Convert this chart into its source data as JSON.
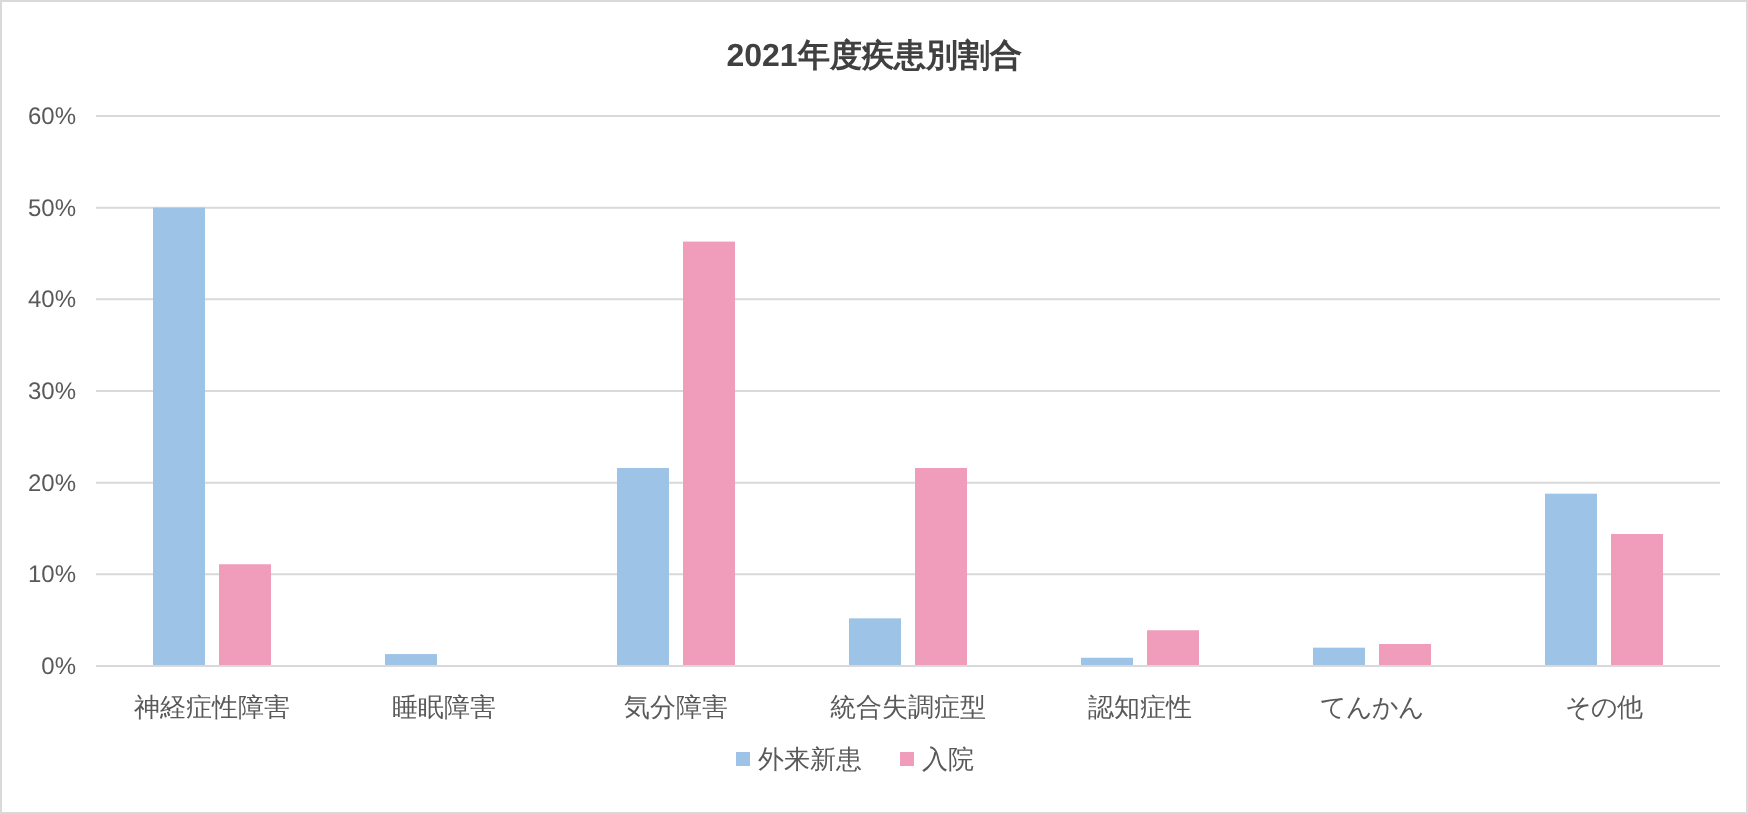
{
  "chart_data": {
    "type": "bar",
    "title": "2021年度疾患別割合",
    "categories": [
      "神経症性障害",
      "睡眠障害",
      "気分障害",
      "統合失調症型",
      "認知症性",
      "てんかん",
      "その他"
    ],
    "series": [
      {
        "name": "外来新患",
        "color": "#9dc3e6",
        "values": [
          50.0,
          1.3,
          21.6,
          5.2,
          0.9,
          2.0,
          18.8
        ]
      },
      {
        "name": "入院",
        "color": "#f09cbb",
        "values": [
          11.1,
          0,
          46.3,
          21.6,
          3.9,
          2.4,
          14.4
        ]
      }
    ],
    "ylim": [
      0,
      60
    ],
    "yticks": [
      {
        "value": 0,
        "label": "0%"
      },
      {
        "value": 10,
        "label": "10%"
      },
      {
        "value": 20,
        "label": "20%"
      },
      {
        "value": 30,
        "label": "30%"
      },
      {
        "value": 40,
        "label": "40%"
      },
      {
        "value": 50,
        "label": "50%"
      },
      {
        "value": 60,
        "label": "60%"
      }
    ],
    "grid": "y",
    "legend": "bottom"
  }
}
